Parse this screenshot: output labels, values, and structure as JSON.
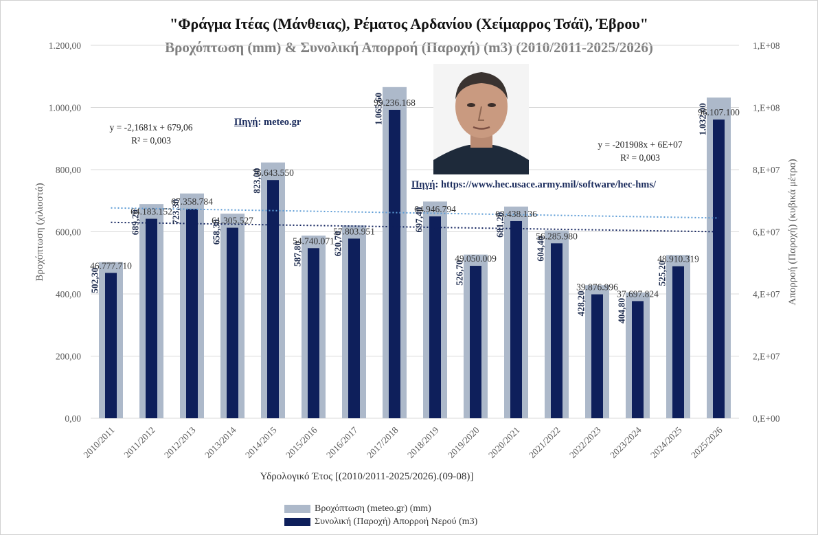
{
  "title_line1": "\"Φράγμα Ιτέας (Μάνθειας), Ρέματος Αρδανίου (Χείμαρρος Τσάϊ), Έβρου\"",
  "title_line2": "Βροχόπτωση (mm) & Συνολική Απορροή (Παροχή) (m3) (2010/2011-2025/2026)",
  "annotations": {
    "rain_trend_eq": "y = -2,1681x + 679,06",
    "rain_trend_r2": "R² = 0,003",
    "flow_trend_eq": "y = -201908x + 6E+07",
    "flow_trend_r2": "R² = 0,003",
    "source1_label": "Πηγή",
    "source1_text": ": meteo.gr",
    "source2_label": "Πηγή",
    "source2_text": ": https://www.hec.usace.army.mil/software/hec-hms/"
  },
  "colors": {
    "rain": "#adb9ca",
    "flow": "#0e1f5b",
    "axis_text": "#595959",
    "grid": "#d9d9d9",
    "rain_trend": "#5b9bd5",
    "flow_trend": "#0e1f5b"
  },
  "chart_data": {
    "type": "bar",
    "categories": [
      "2010/2011",
      "2011/2012",
      "2012/2013",
      "2013/2014",
      "2014/2015",
      "2015/2016",
      "2016/2017",
      "2017/2018",
      "2018/2019",
      "2019/2020",
      "2020/2021",
      "2021/2022",
      "2022/2023",
      "2023/2024",
      "2024/2025",
      "2025/2026"
    ],
    "series": [
      {
        "name": "Βροχόπτωση (meteo.gr) (mm)",
        "axis": "left",
        "values": [
          502.3,
          689.2,
          723.3,
          658.3,
          823.0,
          587.8,
          620.7,
          1065.6,
          697.4,
          526.7,
          681.2,
          604.4,
          428.2,
          404.8,
          525.2,
          1032.0
        ],
        "labels": [
          "502,30",
          "689,20",
          "723,30",
          "658,30",
          "823,00",
          "587,80",
          "620,70",
          "1.065,60",
          "697,40",
          "526,70",
          "681,20",
          "604,40",
          "428,20",
          "404,80",
          "525,20",
          "1.032,00"
        ]
      },
      {
        "name": "Συνολική (Παροχή) Απορροή Νερού (m3)",
        "axis": "right",
        "values": [
          46777710,
          64183152,
          67358784,
          61305527,
          76643550,
          54740071,
          57803951,
          99236168,
          64946794,
          49050009,
          63438136,
          56285980,
          39876996,
          37697824,
          48910319,
          96107100
        ],
        "labels": [
          "46.777.710",
          "64.183.152",
          "67.358.784",
          "61.305.527",
          "76.643.550",
          "54.740.071",
          "57.803.951",
          "99.236.168",
          "64.946.794",
          "49.050.009",
          "63.438.136",
          "56.285.980",
          "39.876.996",
          "37.697.824",
          "48.910.319",
          "96.107.100"
        ]
      }
    ],
    "xlabel": "Υδρολογικό Έτος [(2010/2011-2025/2026).(09-08)]",
    "ylabel_left": "Βροχόπτωση (χιλιοστά)",
    "ylabel_right": "Απορροή (Παροχή) (κυβικά μέτρα)",
    "ylim_left": [
      0,
      1200
    ],
    "ylim_right": [
      0,
      120000000
    ],
    "yticks_left": [
      "0,00",
      "200,00",
      "400,00",
      "600,00",
      "800,00",
      "1.000,00",
      "1.200,00"
    ],
    "yticks_right": [
      "0,E+00",
      "2,E+07",
      "4,E+07",
      "6,E+07",
      "8,E+07",
      "1,E+08",
      "1,E+08"
    ],
    "grid": true,
    "legend_position": "bottom"
  }
}
